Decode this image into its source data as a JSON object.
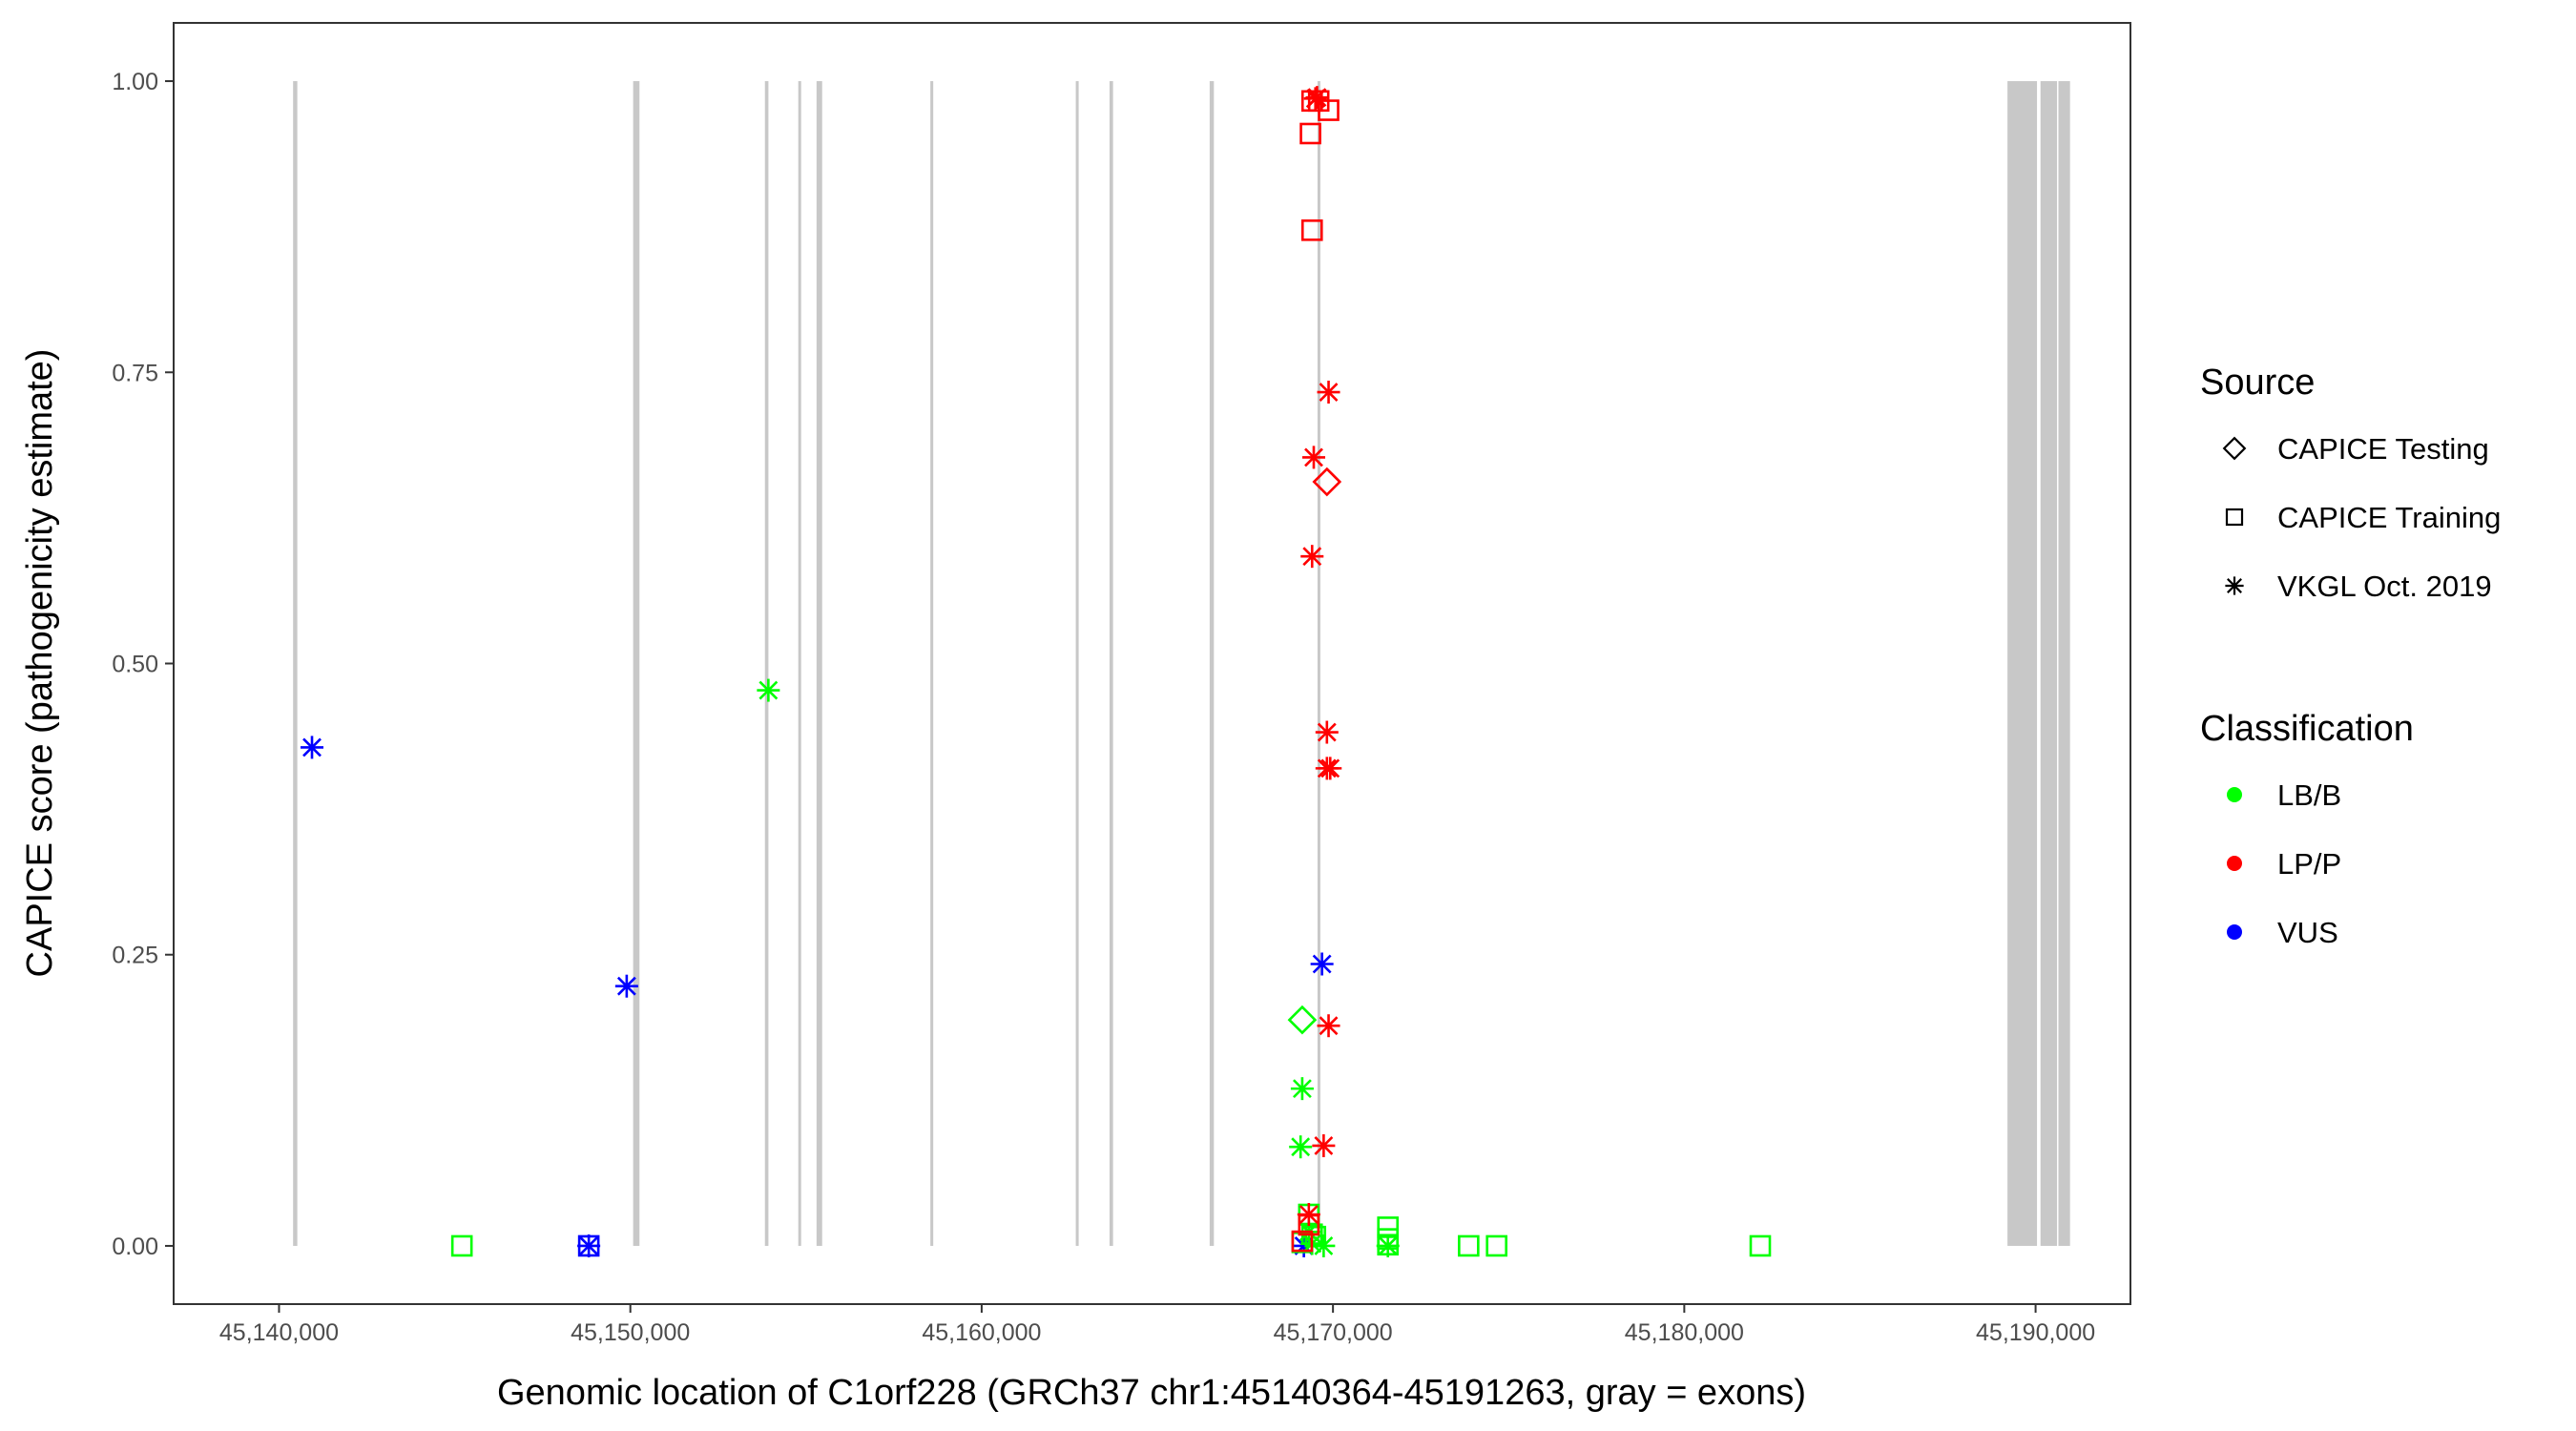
{
  "chart_data": {
    "type": "scatter",
    "xlabel": "Genomic location of C1orf228 (GRCh37 chr1:45140364-45191263, gray = exons)",
    "ylabel": "CAPICE score (pathogenicity estimate)",
    "xlim": [
      45137000,
      45192700
    ],
    "ylim": [
      -0.05,
      1.05
    ],
    "x_ticks": [
      45140000,
      45150000,
      45160000,
      45170000,
      45180000,
      45190000
    ],
    "x_tick_labels": [
      "45,140,000",
      "45,150,000",
      "45,160,000",
      "45,170,000",
      "45,180,000",
      "45,190,000"
    ],
    "y_ticks": [
      0,
      0.25,
      0.5,
      0.75,
      1.0
    ],
    "y_tick_labels": [
      "0.00",
      "0.25",
      "0.50",
      "0.75",
      "1.00"
    ],
    "grid": false,
    "legend_placement": "right",
    "exon_color": "#c8c8c8",
    "exons": [
      [
        45140400,
        45140520
      ],
      [
        45150080,
        45150260
      ],
      [
        45153830,
        45153930
      ],
      [
        45154780,
        45154860
      ],
      [
        45155300,
        45155460
      ],
      [
        45158540,
        45158600
      ],
      [
        45162680,
        45162720
      ],
      [
        45163640,
        45163740
      ],
      [
        45166490,
        45166610
      ],
      [
        45169560,
        45169640
      ],
      [
        45189200,
        45190040
      ],
      [
        45190140,
        45190610
      ],
      [
        45190650,
        45190980
      ]
    ],
    "legend": {
      "source_title": "Source",
      "sources": [
        {
          "label": "CAPICE Testing",
          "shape": "diamond"
        },
        {
          "label": "CAPICE Training",
          "shape": "square"
        },
        {
          "label": "VKGL Oct. 2019",
          "shape": "asterisk"
        }
      ],
      "class_title": "Classification",
      "classes": [
        {
          "label": "LB/B",
          "color": "#00ff00"
        },
        {
          "label": "LP/P",
          "color": "#ff0000"
        },
        {
          "label": "VUS",
          "color": "#0000ff"
        }
      ]
    },
    "points": [
      {
        "x": 45140938,
        "y": 0.428,
        "source": "VKGL Oct. 2019",
        "class": "VUS"
      },
      {
        "x": 45149896,
        "y": 0.223,
        "source": "VKGL Oct. 2019",
        "class": "VUS"
      },
      {
        "x": 45148817,
        "y": 0.0,
        "source": "VKGL Oct. 2019",
        "class": "VUS"
      },
      {
        "x": 45148817,
        "y": 0.0,
        "source": "CAPICE Training",
        "class": "VUS"
      },
      {
        "x": 45169688,
        "y": 0.242,
        "source": "VKGL Oct. 2019",
        "class": "VUS"
      },
      {
        "x": 45169172,
        "y": 0.0,
        "source": "VKGL Oct. 2019",
        "class": "VUS"
      },
      {
        "x": 45153929,
        "y": 0.477,
        "source": "VKGL Oct. 2019",
        "class": "LB/B"
      },
      {
        "x": 45145206,
        "y": 0.0,
        "source": "CAPICE Training",
        "class": "LB/B"
      },
      {
        "x": 45169125,
        "y": 0.194,
        "source": "CAPICE Testing",
        "class": "LB/B"
      },
      {
        "x": 45169125,
        "y": 0.135,
        "source": "VKGL Oct. 2019",
        "class": "LB/B"
      },
      {
        "x": 45169078,
        "y": 0.085,
        "source": "VKGL Oct. 2019",
        "class": "LB/B"
      },
      {
        "x": 45169313,
        "y": 0.027,
        "source": "CAPICE Training",
        "class": "LB/B"
      },
      {
        "x": 45169406,
        "y": 0.01,
        "source": "CAPICE Training",
        "class": "LB/B"
      },
      {
        "x": 45169500,
        "y": 0.008,
        "source": "CAPICE Training",
        "class": "LB/B"
      },
      {
        "x": 45169125,
        "y": 0.003,
        "source": "CAPICE Training",
        "class": "LB/B"
      },
      {
        "x": 45169313,
        "y": 0.012,
        "source": "VKGL Oct. 2019",
        "class": "LB/B"
      },
      {
        "x": 45169406,
        "y": 0.002,
        "source": "VKGL Oct. 2019",
        "class": "LB/B"
      },
      {
        "x": 45169735,
        "y": 0.0,
        "source": "VKGL Oct. 2019",
        "class": "LB/B"
      },
      {
        "x": 45171564,
        "y": 0.016,
        "source": "CAPICE Training",
        "class": "LB/B"
      },
      {
        "x": 45171564,
        "y": 0.006,
        "source": "CAPICE Training",
        "class": "LB/B"
      },
      {
        "x": 45171564,
        "y": 0.001,
        "source": "CAPICE Training",
        "class": "LB/B"
      },
      {
        "x": 45171564,
        "y": 0.0,
        "source": "VKGL Oct. 2019",
        "class": "LB/B"
      },
      {
        "x": 45173862,
        "y": 0.0,
        "source": "CAPICE Training",
        "class": "LB/B"
      },
      {
        "x": 45174659,
        "y": 0.0,
        "source": "CAPICE Training",
        "class": "LB/B"
      },
      {
        "x": 45182163,
        "y": 0.0,
        "source": "CAPICE Training",
        "class": "LB/B"
      },
      {
        "x": 45169500,
        "y": 0.985,
        "source": "VKGL Oct. 2019",
        "class": "LP/P"
      },
      {
        "x": 45169547,
        "y": 0.986,
        "source": "VKGL Oct. 2019",
        "class": "LP/P"
      },
      {
        "x": 45169406,
        "y": 0.983,
        "source": "CAPICE Training",
        "class": "LP/P"
      },
      {
        "x": 45169594,
        "y": 0.983,
        "source": "CAPICE Training",
        "class": "LP/P"
      },
      {
        "x": 45169875,
        "y": 0.975,
        "source": "CAPICE Training",
        "class": "LP/P"
      },
      {
        "x": 45169360,
        "y": 0.955,
        "source": "CAPICE Training",
        "class": "LP/P"
      },
      {
        "x": 45169406,
        "y": 0.872,
        "source": "CAPICE Training",
        "class": "LP/P"
      },
      {
        "x": 45169875,
        "y": 0.733,
        "source": "VKGL Oct. 2019",
        "class": "LP/P"
      },
      {
        "x": 45169453,
        "y": 0.677,
        "source": "VKGL Oct. 2019",
        "class": "LP/P"
      },
      {
        "x": 45169828,
        "y": 0.656,
        "source": "CAPICE Testing",
        "class": "LP/P"
      },
      {
        "x": 45169406,
        "y": 0.592,
        "source": "VKGL Oct. 2019",
        "class": "LP/P"
      },
      {
        "x": 45169828,
        "y": 0.441,
        "source": "VKGL Oct. 2019",
        "class": "LP/P"
      },
      {
        "x": 45169828,
        "y": 0.41,
        "source": "VKGL Oct. 2019",
        "class": "LP/P"
      },
      {
        "x": 45169922,
        "y": 0.41,
        "source": "VKGL Oct. 2019",
        "class": "LP/P"
      },
      {
        "x": 45169875,
        "y": 0.189,
        "source": "VKGL Oct. 2019",
        "class": "LP/P"
      },
      {
        "x": 45169735,
        "y": 0.086,
        "source": "VKGL Oct. 2019",
        "class": "LP/P"
      },
      {
        "x": 45169313,
        "y": 0.027,
        "source": "VKGL Oct. 2019",
        "class": "LP/P"
      },
      {
        "x": 45169313,
        "y": 0.018,
        "source": "CAPICE Training",
        "class": "LP/P"
      },
      {
        "x": 45169125,
        "y": 0.004,
        "source": "CAPICE Training",
        "class": "LP/P"
      }
    ]
  }
}
